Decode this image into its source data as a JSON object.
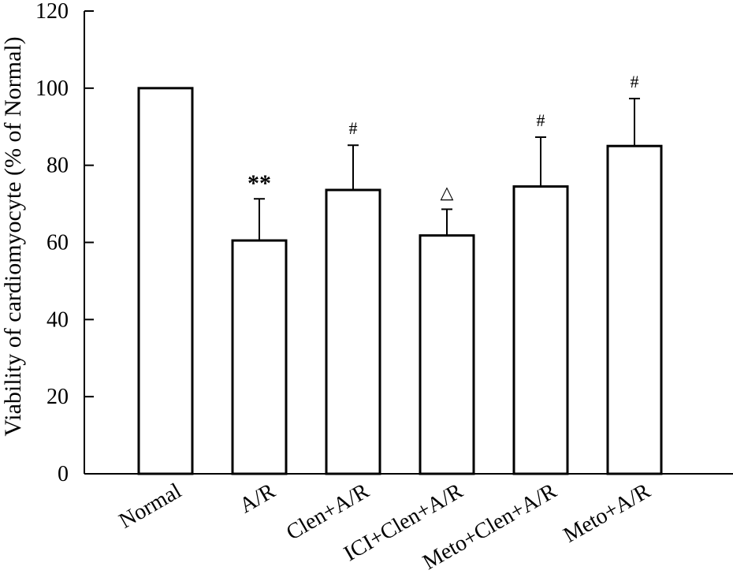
{
  "chart_data": {
    "type": "bar",
    "title": "",
    "xlabel": "",
    "ylabel": "Viability of cardiomyocyte (% of Normal)",
    "ylim": [
      0,
      120
    ],
    "yticks": [
      "0",
      "20",
      "40",
      "60",
      "80",
      "100",
      "120"
    ],
    "grid": false,
    "legend": "none",
    "categories": [
      "Normal",
      "A/R",
      "Clen+A/R",
      "ICI+Clen+A/R",
      "Meto+Clen+A/R",
      "Meto+A/R"
    ],
    "series": [
      {
        "values": [
          100,
          60.5,
          73.6,
          61.8,
          74.5,
          85.0
        ],
        "error": [
          0,
          10.8,
          11.6,
          6.8,
          12.8,
          12.3
        ],
        "annotations": [
          "",
          "**",
          "#",
          "△",
          "#",
          "#"
        ]
      }
    ],
    "colors": {
      "bar_fill": "#ffffff",
      "stroke": "#000000"
    }
  }
}
